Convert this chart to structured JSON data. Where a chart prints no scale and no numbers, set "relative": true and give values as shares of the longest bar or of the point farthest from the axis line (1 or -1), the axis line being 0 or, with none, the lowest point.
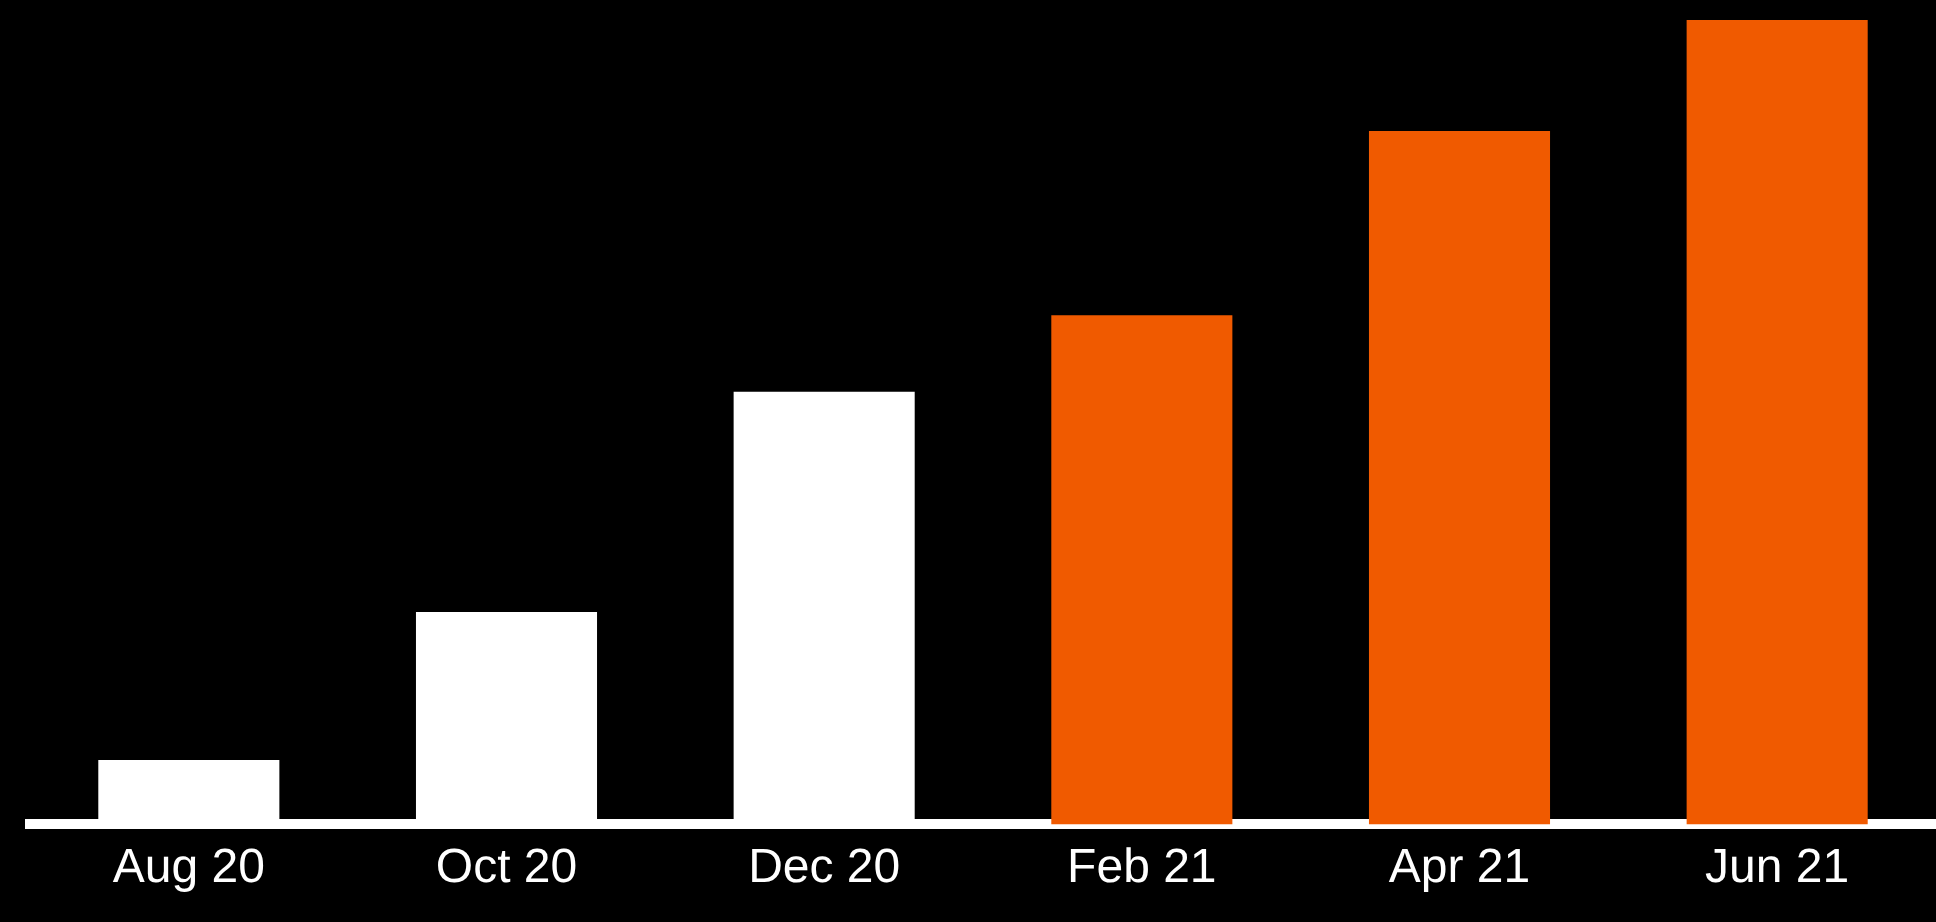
{
  "chart_data": {
    "type": "bar",
    "relative": true,
    "categories": [
      "Aug 20",
      "Oct 20",
      "Dec 20",
      "Feb 21",
      "Apr 21",
      "Jun 21"
    ],
    "values": [
      0.08,
      0.264,
      0.538,
      0.633,
      0.862,
      1
    ],
    "colors": [
      "#ffffff",
      "#ffffff",
      "#ffffff",
      "#f05a00",
      "#f05a00",
      "#f05a00"
    ],
    "orientation": "vertical"
  }
}
